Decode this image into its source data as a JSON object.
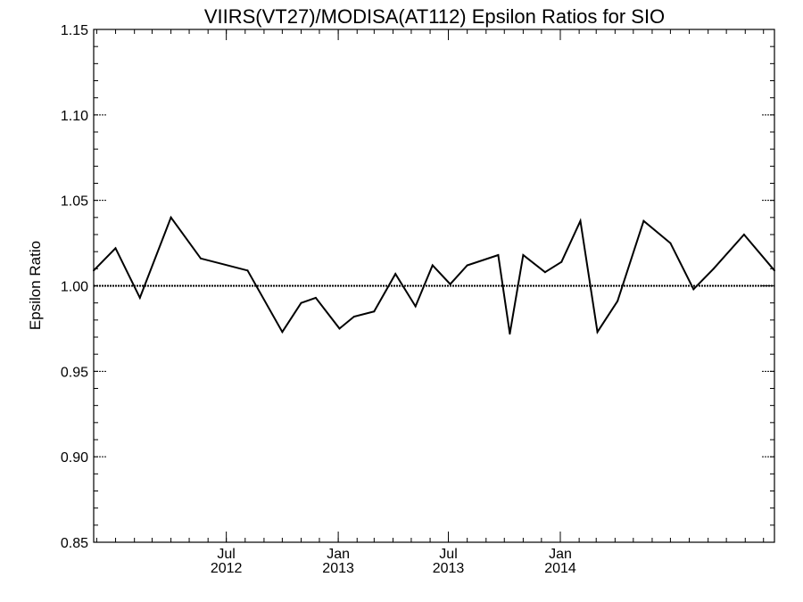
{
  "chart_data": {
    "type": "line",
    "title": "VIIRS(VT27)/MODISA(AT112)  Epsilon Ratios for SIO",
    "xlabel": "",
    "ylabel": "Epsilon Ratio",
    "ylim": [
      0.85,
      1.15
    ],
    "xlim": [
      "2011-11-26",
      "2014-12-19"
    ],
    "y_ticks": [
      {
        "value": 0.85,
        "label": "0.85"
      },
      {
        "value": 0.9,
        "label": "0.90"
      },
      {
        "value": 0.95,
        "label": "0.95"
      },
      {
        "value": 1.0,
        "label": "1.00"
      },
      {
        "value": 1.05,
        "label": "1.05"
      },
      {
        "value": 1.1,
        "label": "1.10"
      },
      {
        "value": 1.15,
        "label": "1.15"
      }
    ],
    "x_ticks": [
      {
        "date": "2012-07-01",
        "month": "Jul",
        "year": "2012"
      },
      {
        "date": "2013-01-01",
        "month": "Jan",
        "year": "2013"
      },
      {
        "date": "2013-07-01",
        "month": "Jul",
        "year": "2013"
      },
      {
        "date": "2014-01-01",
        "month": "Jan",
        "year": "2014"
      }
    ],
    "reference_line": 1.0,
    "grid": false,
    "series": [
      {
        "x": [
          "2011-11-26",
          "2012-01-01",
          "2012-02-10",
          "2012-04-01",
          "2012-05-20",
          "2012-08-05",
          "2012-10-01",
          "2012-11-01",
          "2012-11-25",
          "2013-01-03",
          "2013-01-27",
          "2013-03-01",
          "2013-04-05",
          "2013-05-08",
          "2013-06-05",
          "2013-07-04",
          "2013-08-01",
          "2013-09-21",
          "2013-10-10",
          "2013-11-01",
          "2013-12-07",
          "2014-01-03",
          "2014-02-03",
          "2014-03-03",
          "2014-04-05",
          "2014-05-18",
          "2014-07-01",
          "2014-08-08",
          "2014-09-10",
          "2014-10-30",
          "2014-12-19"
        ],
        "values": [
          1.009,
          1.022,
          0.993,
          1.04,
          1.016,
          1.009,
          0.973,
          0.99,
          0.993,
          0.975,
          0.982,
          0.985,
          1.007,
          0.988,
          1.012,
          1.001,
          1.012,
          1.018,
          0.972,
          1.018,
          1.008,
          1.014,
          1.038,
          0.973,
          0.991,
          1.038,
          1.025,
          0.998,
          1.01,
          1.03,
          1.009
        ]
      }
    ]
  }
}
